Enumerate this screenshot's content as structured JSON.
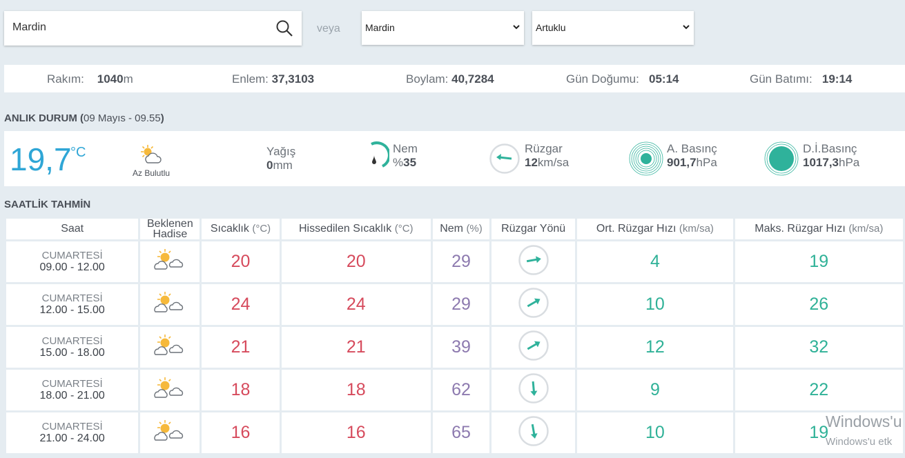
{
  "search": {
    "value": "Mardin"
  },
  "separator": "veya",
  "province_select": {
    "value": "Mardin"
  },
  "district_select": {
    "value": "Artuklu"
  },
  "location_info": {
    "altitude_label": "Rakım:",
    "altitude_value": "1040",
    "altitude_unit": "m",
    "latitude_label": "Enlem:",
    "latitude_value": "37,3103",
    "longitude_label": "Boylam:",
    "longitude_value": "40,7284",
    "sunrise_label": "Gün Doğumu:",
    "sunrise_value": "05:14",
    "sunset_label": "Gün Batımı:",
    "sunset_value": "19:14"
  },
  "current": {
    "title": "ANLIK DURUM",
    "title_open": " (",
    "date": "09 Mayıs - 09.55",
    "title_close": ")",
    "temperature": "19,7",
    "temperature_unit": "°C",
    "condition": "Az Bulutlu",
    "condition_icon": "partly-cloudy-icon",
    "precip_label": "Yağış",
    "precip_value": "0",
    "precip_unit": "mm",
    "humidity_label": "Nem",
    "humidity_prefix": "%",
    "humidity_value": "35",
    "wind_label": "Rüzgar",
    "wind_value": "12",
    "wind_unit": "km/sa",
    "pressure_label": "A. Basınç",
    "pressure_value": "901,7",
    "pressure_unit": "hPa",
    "sea_pressure_label": "D.İ.Basınç",
    "sea_pressure_value": "1017,3",
    "sea_pressure_unit": "hPa"
  },
  "forecast": {
    "title": "SAATLİK TAHMİN",
    "headers": {
      "time": "Saat",
      "expected": "Beklenen Hadise",
      "temp": "Sıcaklık",
      "temp_unit": "(°C)",
      "feels": "Hissedilen Sıcaklık",
      "feels_unit": "(°C)",
      "humidity": "Nem",
      "humidity_unit": "(%)",
      "wind_dir": "Rüzgar Yönü",
      "avg_wind": "Ort. Rüzgar Hızı",
      "avg_wind_unit": "(km/sa)",
      "max_wind": "Maks. Rüzgar Hızı",
      "max_wind_unit": "(km/sa)"
    },
    "rows": [
      {
        "day": "CUMARTESİ",
        "hours": "09.00 - 12.00",
        "icon": "partly-cloudy-icon",
        "temp": "20",
        "feels": "20",
        "humidity": "29",
        "wind_dir_deg": 80,
        "avg_wind": "4",
        "max_wind": "19"
      },
      {
        "day": "CUMARTESİ",
        "hours": "12.00 - 15.00",
        "icon": "partly-cloudy-icon",
        "temp": "24",
        "feels": "24",
        "humidity": "29",
        "wind_dir_deg": 60,
        "avg_wind": "10",
        "max_wind": "26"
      },
      {
        "day": "CUMARTESİ",
        "hours": "15.00 - 18.00",
        "icon": "partly-cloudy-icon",
        "temp": "21",
        "feels": "21",
        "humidity": "39",
        "wind_dir_deg": 60,
        "avg_wind": "12",
        "max_wind": "32"
      },
      {
        "day": "CUMARTESİ",
        "hours": "18.00 - 21.00",
        "icon": "partly-cloudy-icon",
        "temp": "18",
        "feels": "18",
        "humidity": "62",
        "wind_dir_deg": 175,
        "avg_wind": "9",
        "max_wind": "22"
      },
      {
        "day": "CUMARTESİ",
        "hours": "21.00 - 24.00",
        "icon": "partly-cloudy-icon",
        "temp": "16",
        "feels": "16",
        "humidity": "65",
        "wind_dir_deg": 170,
        "avg_wind": "10",
        "max_wind": "19"
      }
    ]
  },
  "watermark": {
    "line1": "Windows'u",
    "line2": "Windows'u etk"
  },
  "colors": {
    "accent_blue": "#2fa6d6",
    "temp_red": "#d64a5c",
    "humidity_purple": "#8d7aaf",
    "wind_green": "#2fb197",
    "teal": "#2fb29b",
    "sun": "#f6b93b"
  }
}
